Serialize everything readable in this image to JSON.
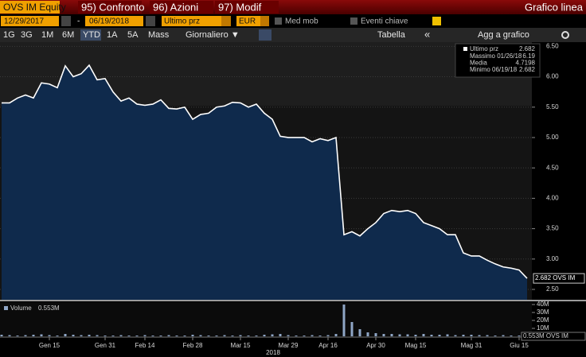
{
  "header": {
    "ticker": "OVS IM Equity",
    "menu": [
      "95) Confronto",
      "96) Azioni",
      "97) Modif"
    ],
    "view": "Grafico linea"
  },
  "controls": {
    "start_date": "12/29/2017",
    "separator": "-",
    "end_date": "06/19/2018",
    "field": "Ultimo prz",
    "currency": "EUR",
    "options": [
      "Med mob",
      "Eventi chiave"
    ]
  },
  "toolbar": {
    "periods": [
      "1G",
      "3G",
      "1M",
      "6M",
      "YTD",
      "1A",
      "5A",
      "Mass"
    ],
    "active_period": "YTD",
    "frequency": "Giornaliero ▼",
    "table": "Tabella",
    "collapse": "«",
    "add": "Agg a grafico"
  },
  "chart_data": [
    {
      "type": "line",
      "categories": [
        null,
        null,
        null,
        null,
        null,
        null,
        "Gen 15",
        null,
        null,
        null,
        null,
        null,
        null,
        "Gen 31",
        null,
        null,
        null,
        null,
        "Feb 14",
        null,
        null,
        null,
        null,
        null,
        "Feb 28",
        null,
        null,
        null,
        null,
        null,
        "Mar 15",
        null,
        null,
        null,
        null,
        null,
        "Mar 29",
        null,
        null,
        null,
        null,
        "Apr 16",
        null,
        null,
        null,
        null,
        null,
        "Apr 30",
        null,
        null,
        null,
        null,
        "Mag 15",
        null,
        null,
        null,
        null,
        null,
        null,
        "Mag 31",
        null,
        null,
        null,
        null,
        null,
        "Giu 15",
        null
      ],
      "x_year": "2018",
      "series": [
        {
          "name": "Ultimo prz",
          "color": "#ffffff",
          "fill": "#0f2a4c",
          "values": [
            5.57,
            5.57,
            5.65,
            5.7,
            5.65,
            5.9,
            5.88,
            5.82,
            6.18,
            6.0,
            6.05,
            6.19,
            5.95,
            5.97,
            5.75,
            5.6,
            5.65,
            5.55,
            5.53,
            5.55,
            5.62,
            5.48,
            5.47,
            5.5,
            5.3,
            5.38,
            5.4,
            5.5,
            5.52,
            5.58,
            5.57,
            5.5,
            5.55,
            5.4,
            5.3,
            5.02,
            5.0,
            5.0,
            5.0,
            4.93,
            4.98,
            4.95,
            5.0,
            3.4,
            3.45,
            3.38,
            3.5,
            3.6,
            3.75,
            3.8,
            3.78,
            3.8,
            3.75,
            3.6,
            3.55,
            3.5,
            3.4,
            3.4,
            3.1,
            3.05,
            3.05,
            2.98,
            2.92,
            2.87,
            2.85,
            2.82,
            2.682
          ]
        }
      ],
      "stats": [
        {
          "label": "Massimo 01/26/18",
          "value": 6.19
        },
        {
          "label": "Media",
          "value": 4.7198
        },
        {
          "label": "Minimo 06/19/18",
          "value": 2.682
        }
      ],
      "last_label": "2.682 OVS IM",
      "ylim": [
        2.33,
        6.57
      ],
      "yticks": [
        {
          "value": 2.5,
          "label": "2.50"
        },
        {
          "value": 3,
          "label": "3.00"
        },
        {
          "value": 3.5,
          "label": "3.50"
        },
        {
          "value": 4,
          "label": "4.00"
        },
        {
          "value": 4.5,
          "label": "4.50"
        },
        {
          "value": 5,
          "label": "5.00"
        },
        {
          "value": 5.5,
          "label": "5.50"
        },
        {
          "value": 6,
          "label": "6.00"
        },
        {
          "value": 6.5,
          "label": "6.50"
        }
      ],
      "grid": true
    },
    {
      "type": "bar",
      "name": "Volume",
      "value_label": "0.553M",
      "color": "#8fa6c6",
      "values": [
        2,
        1.5,
        1,
        1.5,
        2,
        2.5,
        1.5,
        1,
        3,
        2,
        1.5,
        2,
        1.5,
        1,
        1,
        1.5,
        1,
        1,
        1.5,
        1,
        1,
        1.5,
        1,
        1,
        2,
        1.5,
        1,
        1,
        1.5,
        1,
        1.5,
        1,
        1,
        2,
        2.5,
        3,
        1.5,
        1,
        1,
        1.5,
        1,
        1.5,
        3,
        40,
        18,
        9,
        5,
        4,
        3,
        3,
        2.5,
        2.5,
        2,
        3,
        2,
        2,
        2.5,
        1.5,
        2,
        2,
        1.5,
        1.5,
        1,
        1.5,
        1,
        1,
        0.553
      ],
      "last_label": "0.553M OVS IM",
      "ylim": [
        0,
        43
      ],
      "yticks": [
        {
          "value": 10,
          "label": "10M"
        },
        {
          "value": 20,
          "label": "20M"
        },
        {
          "value": 30,
          "label": "30M"
        },
        {
          "value": 40,
          "label": "40M"
        }
      ]
    }
  ]
}
